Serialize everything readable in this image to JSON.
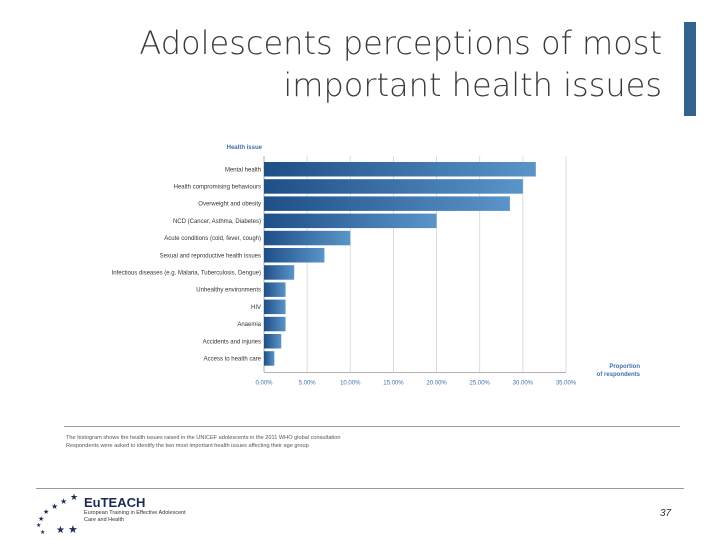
{
  "slide": {
    "title_line1": "Adolescents perceptions of most",
    "title_line2": "important health issues",
    "footnote_line1": "The histogram shows the health issues raised in the UNICEF adolescents in the 2011 WHO global consultation",
    "footnote_line2": "Respondents were asked to identify the two most important health issues affecting their age group",
    "logo_name": "EuTEACH",
    "logo_sub_line1": "European Training in Effective Adolescent",
    "logo_sub_line2": "Care and Health",
    "page_number": "37",
    "star_icons": [
      "★",
      "★",
      "★",
      "★",
      "★",
      "★",
      "★",
      "★",
      "★"
    ]
  },
  "colors": {
    "bar_dark": "#1e4f86",
    "bar_light": "#5a94c8",
    "axis_text": "#3f72ab",
    "accent": "#34628f"
  },
  "chart_data": {
    "type": "bar",
    "orientation": "horizontal",
    "y_title": "Health issue",
    "x_title_line1": "Proportion",
    "x_title_line2": "of respondents",
    "categories": [
      "Mental health",
      "Health compromising behaviours",
      "Overweight and obesity",
      "NCD (Cancer, Asthma, Diabetes)",
      "Acute conditions (cold, fever, cough)",
      "Sexual and reproductive health issues",
      "Infectious diseases (e.g. Malaria, Tuberculosis, Dengue)",
      "Unhealthy environments",
      "HIV",
      "Anaemia",
      "Accidents and injuries",
      "Access to health care"
    ],
    "values": [
      31.5,
      30.0,
      28.5,
      20.0,
      10.0,
      7.0,
      3.5,
      2.5,
      2.5,
      2.5,
      2.0,
      1.2
    ],
    "x_ticks": [
      "0.00%",
      "5.00%",
      "10.00%",
      "15.00%",
      "20.00%",
      "25.00%",
      "30.00%",
      "35.00%"
    ],
    "xlim": [
      0,
      35
    ],
    "grid": true
  }
}
